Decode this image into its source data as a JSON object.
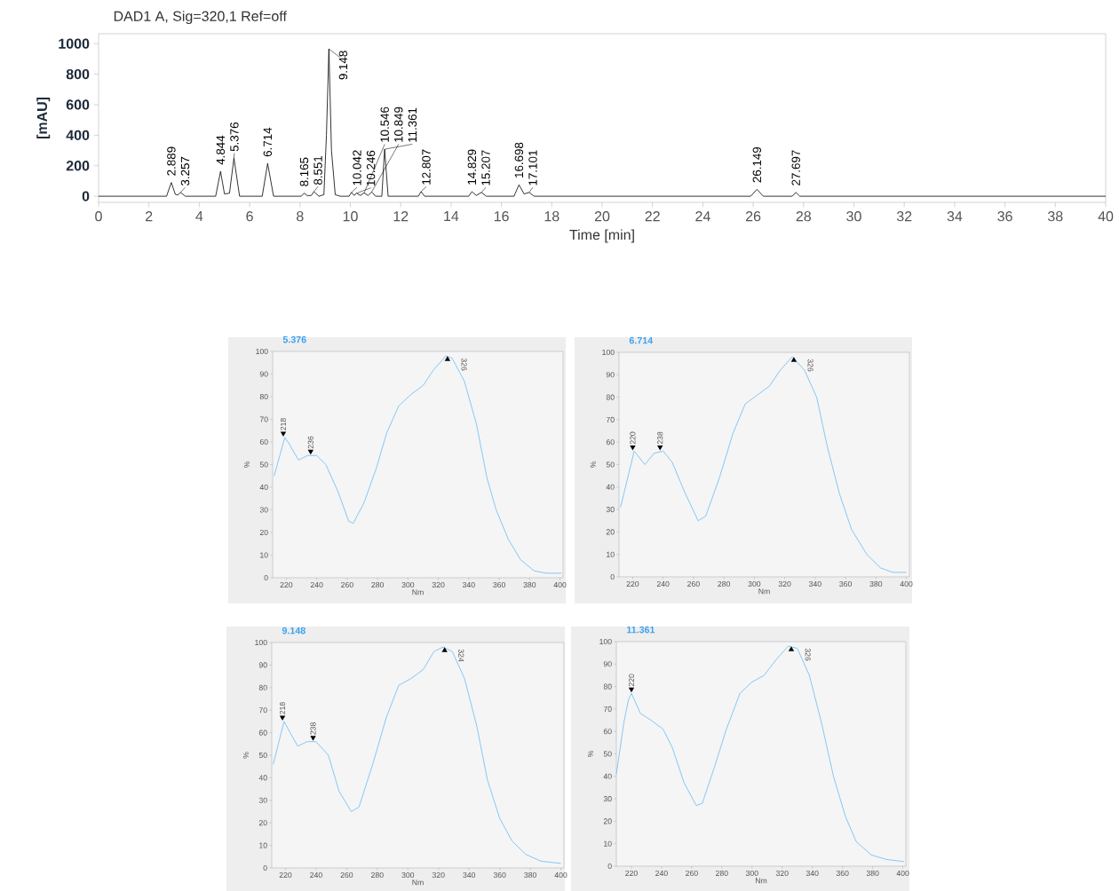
{
  "chart_data": [
    {
      "type": "line",
      "title": "DAD1 A, Sig=320,1 Ref=off",
      "xlabel": "Time [min]",
      "ylabel": "[mAU]",
      "color": "#000000",
      "x": [
        0,
        2.7,
        2.889,
        3.05,
        3.15,
        3.257,
        3.45,
        4.65,
        4.844,
        5.0,
        5.2,
        5.376,
        5.6,
        6.5,
        6.714,
        6.95,
        8.05,
        8.165,
        8.3,
        8.45,
        8.551,
        8.75,
        8.95,
        9.05,
        9.148,
        9.25,
        9.4,
        9.6,
        9.95,
        10.042,
        10.15,
        10.246,
        10.4,
        10.546,
        10.7,
        10.849,
        11.0,
        11.25,
        11.361,
        11.5,
        12.7,
        12.807,
        12.95,
        14.7,
        14.829,
        15.0,
        15.207,
        15.4,
        16.5,
        16.698,
        16.9,
        17.101,
        17.3,
        25.9,
        26.149,
        26.4,
        27.55,
        27.697,
        27.85,
        40
      ],
      "values": [
        0,
        0,
        90,
        12,
        8,
        25,
        0,
        0,
        163,
        15,
        20,
        250,
        0,
        0,
        215,
        0,
        0,
        20,
        3,
        5,
        30,
        0,
        10,
        400,
        965,
        300,
        10,
        0,
        0,
        25,
        5,
        20,
        5,
        22,
        5,
        28,
        0,
        0,
        308,
        0,
        0,
        30,
        0,
        0,
        30,
        5,
        25,
        0,
        0,
        75,
        15,
        25,
        0,
        0,
        45,
        0,
        0,
        25,
        0,
        0
      ],
      "xlim": [
        0,
        40
      ],
      "xticks": [
        0,
        2,
        4,
        6,
        8,
        10,
        12,
        14,
        16,
        18,
        20,
        22,
        24,
        26,
        28,
        30,
        32,
        34,
        36,
        38,
        40
      ],
      "ylim": [
        -40,
        1065
      ],
      "yticks": [
        0,
        200,
        400,
        600,
        800,
        1000
      ],
      "annotations": [
        {
          "text": "2.889",
          "x": 2.889,
          "y": 90
        },
        {
          "text": "3.257",
          "x": 3.257,
          "y": 25
        },
        {
          "text": "4.844",
          "x": 4.844,
          "y": 163
        },
        {
          "text": "5.376",
          "x": 5.376,
          "y": 250
        },
        {
          "text": "6.714",
          "x": 6.714,
          "y": 215
        },
        {
          "text": "8.165",
          "x": 8.165,
          "y": 20
        },
        {
          "text": "8.551",
          "x": 8.551,
          "y": 30
        },
        {
          "text": "9.148",
          "x": 9.148,
          "y": 965
        },
        {
          "text": "10.042",
          "x": 10.042,
          "y": 25
        },
        {
          "text": "10.246",
          "x": 10.246,
          "y": 20
        },
        {
          "text": "10.546",
          "x": 10.546,
          "y": 22
        },
        {
          "text": "10.849",
          "x": 10.849,
          "y": 28
        },
        {
          "text": "11.361",
          "x": 11.361,
          "y": 308
        },
        {
          "text": "12.807",
          "x": 12.807,
          "y": 30
        },
        {
          "text": "14.829",
          "x": 14.829,
          "y": 30
        },
        {
          "text": "15.207",
          "x": 15.207,
          "y": 25
        },
        {
          "text": "16.698",
          "x": 16.698,
          "y": 75
        },
        {
          "text": "17.101",
          "x": 17.101,
          "y": 25
        },
        {
          "text": "26.149",
          "x": 26.149,
          "y": 45
        },
        {
          "text": "27.697",
          "x": 27.697,
          "y": 25
        }
      ]
    },
    {
      "type": "line",
      "title": "5.376",
      "xlabel": "Nm",
      "ylabel": "%",
      "color": "#7cc4f4",
      "x": [
        212,
        219,
        222,
        228,
        234,
        240,
        246,
        254,
        261,
        264,
        271,
        279,
        286,
        294,
        302,
        310,
        317,
        325,
        329,
        337,
        345,
        352,
        358,
        366,
        374,
        383,
        391,
        401
      ],
      "values": [
        45,
        62,
        59,
        52,
        54,
        54,
        50,
        38,
        25,
        24,
        33,
        48,
        64,
        76,
        81,
        85,
        92,
        98,
        97,
        87,
        68,
        44,
        30,
        17,
        8,
        3,
        2,
        2
      ],
      "xlim": [
        211,
        402
      ],
      "xticks": [
        220,
        240,
        260,
        280,
        300,
        320,
        340,
        360,
        380,
        400
      ],
      "ylim": [
        0,
        100
      ],
      "yticks": [
        0,
        10,
        20,
        30,
        40,
        50,
        60,
        70,
        80,
        90,
        100
      ],
      "annotations": [
        {
          "text": "218",
          "x": 218,
          "y": 62
        },
        {
          "text": "236",
          "x": 236,
          "y": 54
        },
        {
          "text": "326",
          "x": 326,
          "y": 98
        }
      ]
    },
    {
      "type": "line",
      "title": "6.714",
      "xlabel": "Nm",
      "ylabel": "%",
      "color": "#7cc4f4",
      "x": [
        212,
        221,
        228,
        234,
        240,
        246,
        254,
        263,
        268,
        277,
        286,
        294,
        302,
        310,
        317,
        325,
        333,
        341,
        348,
        356,
        364,
        374,
        383,
        391,
        400
      ],
      "values": [
        31,
        56,
        50,
        55,
        56,
        51,
        38,
        25,
        27,
        44,
        64,
        77,
        81,
        85,
        92,
        98,
        92,
        80,
        58,
        37,
        21,
        10,
        4,
        2,
        2
      ],
      "xlim": [
        211,
        402
      ],
      "xticks": [
        220,
        240,
        260,
        280,
        300,
        320,
        340,
        360,
        380,
        400
      ],
      "ylim": [
        0,
        100
      ],
      "yticks": [
        0,
        10,
        20,
        30,
        40,
        50,
        60,
        70,
        80,
        90,
        100
      ],
      "annotations": [
        {
          "text": "220",
          "x": 220,
          "y": 56
        },
        {
          "text": "238",
          "x": 238,
          "y": 56
        },
        {
          "text": "326",
          "x": 326,
          "y": 98
        }
      ]
    },
    {
      "type": "line",
      "title": "9.148",
      "xlabel": "Nm",
      "ylabel": "%",
      "color": "#7cc4f4",
      "x": [
        212,
        219,
        223,
        228,
        234,
        240,
        248,
        255,
        263,
        268,
        277,
        286,
        294,
        302,
        310,
        317,
        323,
        329,
        337,
        345,
        352,
        360,
        368,
        377,
        387,
        400
      ],
      "values": [
        46,
        65,
        60,
        54,
        56,
        56,
        50,
        34,
        25,
        27,
        46,
        67,
        81,
        84,
        88,
        96,
        98,
        96,
        84,
        63,
        39,
        22,
        12,
        6,
        3,
        2
      ],
      "xlim": [
        211,
        402
      ],
      "xticks": [
        220,
        240,
        260,
        280,
        300,
        320,
        340,
        360,
        380,
        400
      ],
      "ylim": [
        0,
        100
      ],
      "yticks": [
        0,
        10,
        20,
        30,
        40,
        50,
        60,
        70,
        80,
        90,
        100
      ],
      "annotations": [
        {
          "text": "218",
          "x": 218,
          "y": 65
        },
        {
          "text": "238",
          "x": 238,
          "y": 56
        },
        {
          "text": "324",
          "x": 324,
          "y": 98
        }
      ]
    },
    {
      "type": "line",
      "title": "11.361",
      "xlabel": "Nm",
      "ylabel": "%",
      "color": "#7cc4f4",
      "x": [
        210,
        215,
        218,
        220,
        226,
        233,
        241,
        247,
        255,
        263,
        267,
        275,
        283,
        292,
        300,
        308,
        316,
        324,
        330,
        338,
        346,
        354,
        362,
        369,
        379,
        389,
        401
      ],
      "values": [
        41,
        64,
        74,
        77,
        68,
        65,
        61,
        53,
        37,
        27,
        28,
        44,
        61,
        77,
        82,
        85,
        92,
        98,
        97,
        85,
        64,
        40,
        22,
        11,
        5,
        3,
        2
      ],
      "xlim": [
        210,
        402
      ],
      "xticks": [
        220,
        240,
        260,
        280,
        300,
        320,
        340,
        360,
        380,
        400
      ],
      "ylim": [
        0,
        100
      ],
      "yticks": [
        0,
        10,
        20,
        30,
        40,
        50,
        60,
        70,
        80,
        90,
        100
      ],
      "annotations": [
        {
          "text": "220",
          "x": 220,
          "y": 77
        },
        {
          "text": "326",
          "x": 326,
          "y": 98
        }
      ]
    }
  ]
}
